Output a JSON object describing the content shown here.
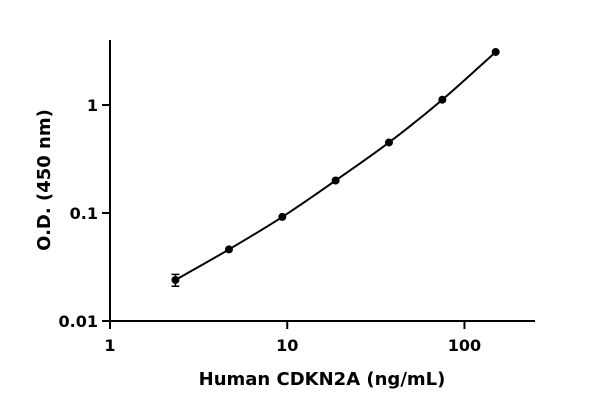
{
  "chart_data": {
    "type": "scatter",
    "x_label": "Human CDKN2A (ng/mL)",
    "y_label": "O.D. (450 nm)",
    "x": [
      2.34,
      4.69,
      9.38,
      18.75,
      37.5,
      75,
      150
    ],
    "values": [
      0.024,
      0.046,
      0.092,
      0.2,
      0.45,
      1.12,
      3.1
    ],
    "errors": [
      0.003,
      null,
      null,
      null,
      null,
      null,
      null
    ],
    "color": "#000000",
    "xlim": [
      1,
      250
    ],
    "xticks": [
      1,
      10,
      100
    ],
    "ylim": [
      0.01,
      4
    ],
    "yticks": [
      0.01,
      0.1,
      1
    ],
    "log_x": true,
    "log_y": true,
    "grid": false
  }
}
